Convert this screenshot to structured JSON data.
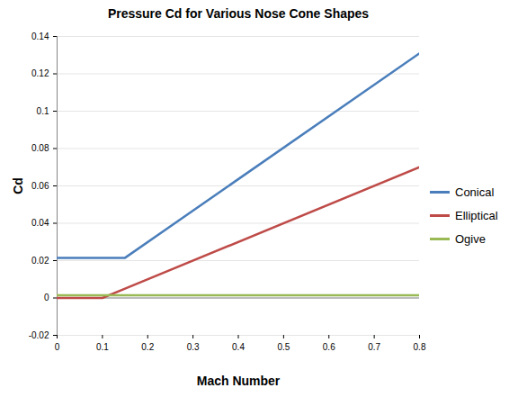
{
  "chart_data": {
    "type": "line",
    "title": "Pressure Cd for Various Nose Cone Shapes",
    "x_label": "Mach Number",
    "y_label": "Cd",
    "x": [
      0,
      0.1,
      0.15,
      0.8
    ],
    "series": [
      {
        "name": "Conical",
        "color": "#4a7ebb",
        "values": [
          0.0215,
          0.0215,
          0.0215,
          0.131
        ]
      },
      {
        "name": "Elliptical",
        "color": "#be4b48",
        "values": [
          0,
          0,
          0.005,
          0.07
        ]
      },
      {
        "name": "Ogive",
        "color": "#98b954",
        "values": [
          0.0015,
          0.0015,
          0.0015,
          0.0015
        ]
      }
    ],
    "xlim": [
      0,
      0.8
    ],
    "xticks": [
      0,
      0.1,
      0.2,
      0.3,
      0.4,
      0.5,
      0.6,
      0.7,
      0.8
    ],
    "ylim": [
      -0.02,
      0.14
    ],
    "yticks": [
      -0.02,
      0,
      0.02,
      0.04,
      0.06,
      0.08,
      0.1,
      0.12,
      0.14
    ],
    "grid": true,
    "legend": "right"
  }
}
